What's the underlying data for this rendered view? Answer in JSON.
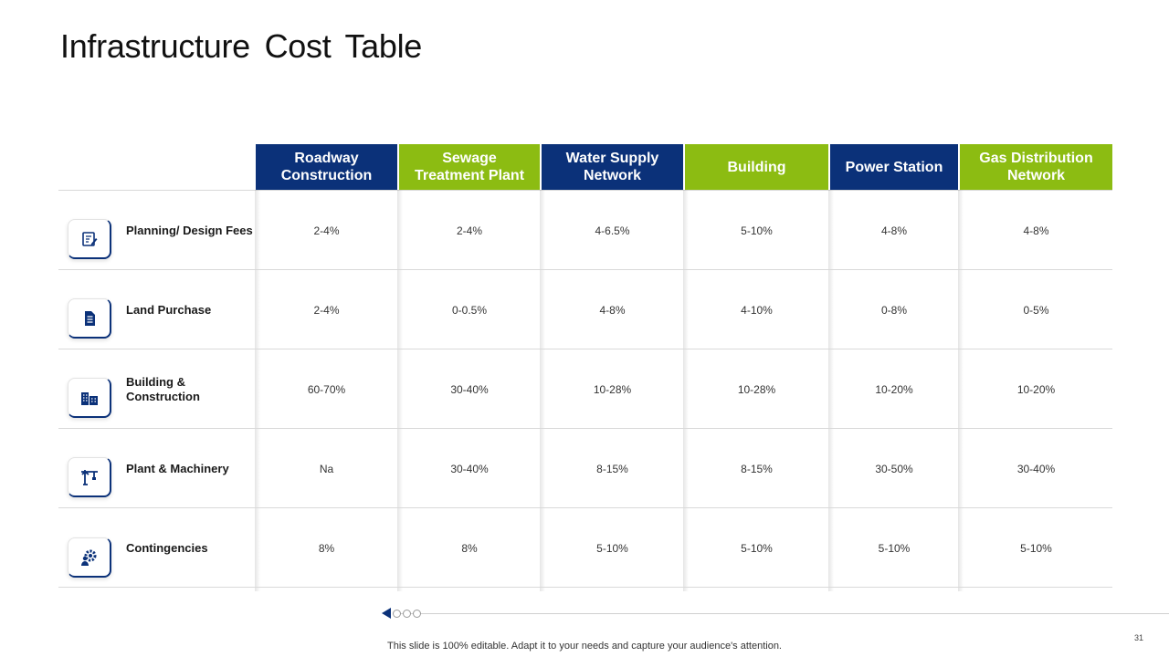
{
  "title": "Infrastructure Cost Table",
  "columns": [
    {
      "label": "Roadway Construction",
      "color": "#0b3179"
    },
    {
      "label": "Sewage Treatment Plant",
      "color": "#8cbc12"
    },
    {
      "label": "Water Supply Network",
      "color": "#0b3179"
    },
    {
      "label": "Building",
      "color": "#8cbc12"
    },
    {
      "label": "Power Station",
      "color": "#0b3179"
    },
    {
      "label": "Gas Distribution Network",
      "color": "#8cbc12"
    }
  ],
  "rows": [
    {
      "label": "Planning/ Design Fees",
      "icon": "design-document-icon",
      "values": [
        "2-4%",
        "2-4%",
        "4-6.5%",
        "5-10%",
        "4-8%",
        "4-8%"
      ]
    },
    {
      "label": "Land Purchase",
      "icon": "document-icon",
      "values": [
        "2-4%",
        "0-0.5%",
        "4-8%",
        "4-10%",
        "0-8%",
        "0-5%"
      ]
    },
    {
      "label": "Building & Construction",
      "icon": "buildings-icon",
      "values": [
        "60-70%",
        "30-40%",
        "10-28%",
        "10-28%",
        "10-20%",
        "10-20%"
      ]
    },
    {
      "label": "Plant & Machinery",
      "icon": "crane-icon",
      "values": [
        "Na",
        "30-40%",
        "8-15%",
        "8-15%",
        "30-50%",
        "30-40%"
      ]
    },
    {
      "label": "Contingencies",
      "icon": "gear-person-icon",
      "values": [
        "8%",
        "8%",
        "5-10%",
        "5-10%",
        "5-10%",
        "5-10%"
      ]
    }
  ],
  "footer": "This slide is 100% editable. Adapt it to your needs and capture your audience's attention.",
  "page_number": "31"
}
